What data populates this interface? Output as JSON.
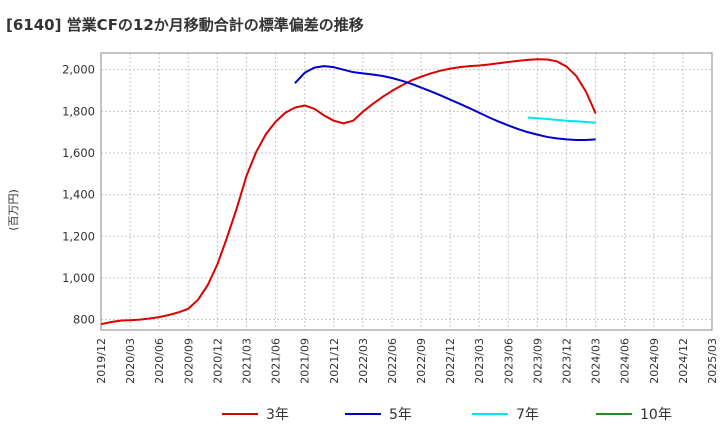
{
  "chart_data": {
    "type": "line",
    "title": "[6140]  営業CFの12か月移動合計の標準偏差の推移",
    "ylabel": "(百万円)",
    "xlabel": "",
    "ylim": [
      750,
      2080
    ],
    "yticks": [
      800,
      1000,
      1200,
      1400,
      1600,
      1800,
      2000
    ],
    "ytick_labels": [
      "800",
      "1,000",
      "1,200",
      "1,400",
      "1,600",
      "1,800",
      "2,000"
    ],
    "x_range": [
      "2019-12",
      "2025-03"
    ],
    "xticks": [
      "2019/12",
      "2020/03",
      "2020/06",
      "2020/09",
      "2020/12",
      "2021/03",
      "2021/06",
      "2021/09",
      "2021/12",
      "2022/03",
      "2022/06",
      "2022/09",
      "2022/12",
      "2023/03",
      "2023/06",
      "2023/09",
      "2023/12",
      "2024/03",
      "2024/06",
      "2024/09",
      "2024/12",
      "2025/03"
    ],
    "grid": true,
    "legend_position": "bottom",
    "series": [
      {
        "name": "3年",
        "color": "#dd0000",
        "points": [
          [
            "2019-12",
            778
          ],
          [
            "2020-01",
            788
          ],
          [
            "2020-02",
            795
          ],
          [
            "2020-03",
            797
          ],
          [
            "2020-04",
            800
          ],
          [
            "2020-05",
            805
          ],
          [
            "2020-06",
            812
          ],
          [
            "2020-07",
            822
          ],
          [
            "2020-08",
            835
          ],
          [
            "2020-09",
            852
          ],
          [
            "2020-10",
            895
          ],
          [
            "2020-11",
            965
          ],
          [
            "2020-12",
            1065
          ],
          [
            "2021-01",
            1195
          ],
          [
            "2021-02",
            1335
          ],
          [
            "2021-03",
            1490
          ],
          [
            "2021-04",
            1605
          ],
          [
            "2021-05",
            1690
          ],
          [
            "2021-06",
            1750
          ],
          [
            "2021-07",
            1793
          ],
          [
            "2021-08",
            1818
          ],
          [
            "2021-09",
            1828
          ],
          [
            "2021-10",
            1812
          ],
          [
            "2021-11",
            1780
          ],
          [
            "2021-12",
            1755
          ],
          [
            "2022-01",
            1742
          ],
          [
            "2022-02",
            1755
          ],
          [
            "2022-03",
            1798
          ],
          [
            "2022-04",
            1835
          ],
          [
            "2022-05",
            1868
          ],
          [
            "2022-06",
            1898
          ],
          [
            "2022-07",
            1924
          ],
          [
            "2022-08",
            1948
          ],
          [
            "2022-09",
            1966
          ],
          [
            "2022-10",
            1982
          ],
          [
            "2022-11",
            1995
          ],
          [
            "2022-12",
            2005
          ],
          [
            "2023-01",
            2012
          ],
          [
            "2023-02",
            2017
          ],
          [
            "2023-03",
            2020
          ],
          [
            "2023-04",
            2025
          ],
          [
            "2023-05",
            2031
          ],
          [
            "2023-06",
            2037
          ],
          [
            "2023-07",
            2042
          ],
          [
            "2023-08",
            2047
          ],
          [
            "2023-09",
            2050
          ],
          [
            "2023-10",
            2049
          ],
          [
            "2023-11",
            2040
          ],
          [
            "2023-12",
            2015
          ],
          [
            "2024-01",
            1970
          ],
          [
            "2024-02",
            1895
          ],
          [
            "2024-03",
            1790
          ]
        ]
      },
      {
        "name": "5年",
        "color": "#0000cc",
        "points": [
          [
            "2021-08",
            1935
          ],
          [
            "2021-09",
            1985
          ],
          [
            "2021-10",
            2010
          ],
          [
            "2021-11",
            2017
          ],
          [
            "2021-12",
            2012
          ],
          [
            "2022-01",
            2000
          ],
          [
            "2022-02",
            1988
          ],
          [
            "2022-03",
            1982
          ],
          [
            "2022-04",
            1977
          ],
          [
            "2022-05",
            1970
          ],
          [
            "2022-06",
            1960
          ],
          [
            "2022-07",
            1947
          ],
          [
            "2022-08",
            1932
          ],
          [
            "2022-09",
            1914
          ],
          [
            "2022-10",
            1896
          ],
          [
            "2022-11",
            1877
          ],
          [
            "2022-12",
            1856
          ],
          [
            "2023-01",
            1836
          ],
          [
            "2023-02",
            1815
          ],
          [
            "2023-03",
            1793
          ],
          [
            "2023-04",
            1771
          ],
          [
            "2023-05",
            1751
          ],
          [
            "2023-06",
            1732
          ],
          [
            "2023-07",
            1715
          ],
          [
            "2023-08",
            1700
          ],
          [
            "2023-09",
            1688
          ],
          [
            "2023-10",
            1677
          ],
          [
            "2023-11",
            1670
          ],
          [
            "2023-12",
            1665
          ],
          [
            "2024-01",
            1662
          ],
          [
            "2024-02",
            1662
          ],
          [
            "2024-03",
            1665
          ]
        ]
      },
      {
        "name": "7年",
        "color": "#00e5ee",
        "points": [
          [
            "2023-08",
            1770
          ],
          [
            "2023-09",
            1767
          ],
          [
            "2023-10",
            1763
          ],
          [
            "2023-11",
            1759
          ],
          [
            "2023-12",
            1755
          ],
          [
            "2024-01",
            1752
          ],
          [
            "2024-02",
            1749
          ],
          [
            "2024-03",
            1745
          ]
        ]
      },
      {
        "name": "10年",
        "color": "#228b22",
        "points": []
      }
    ]
  }
}
